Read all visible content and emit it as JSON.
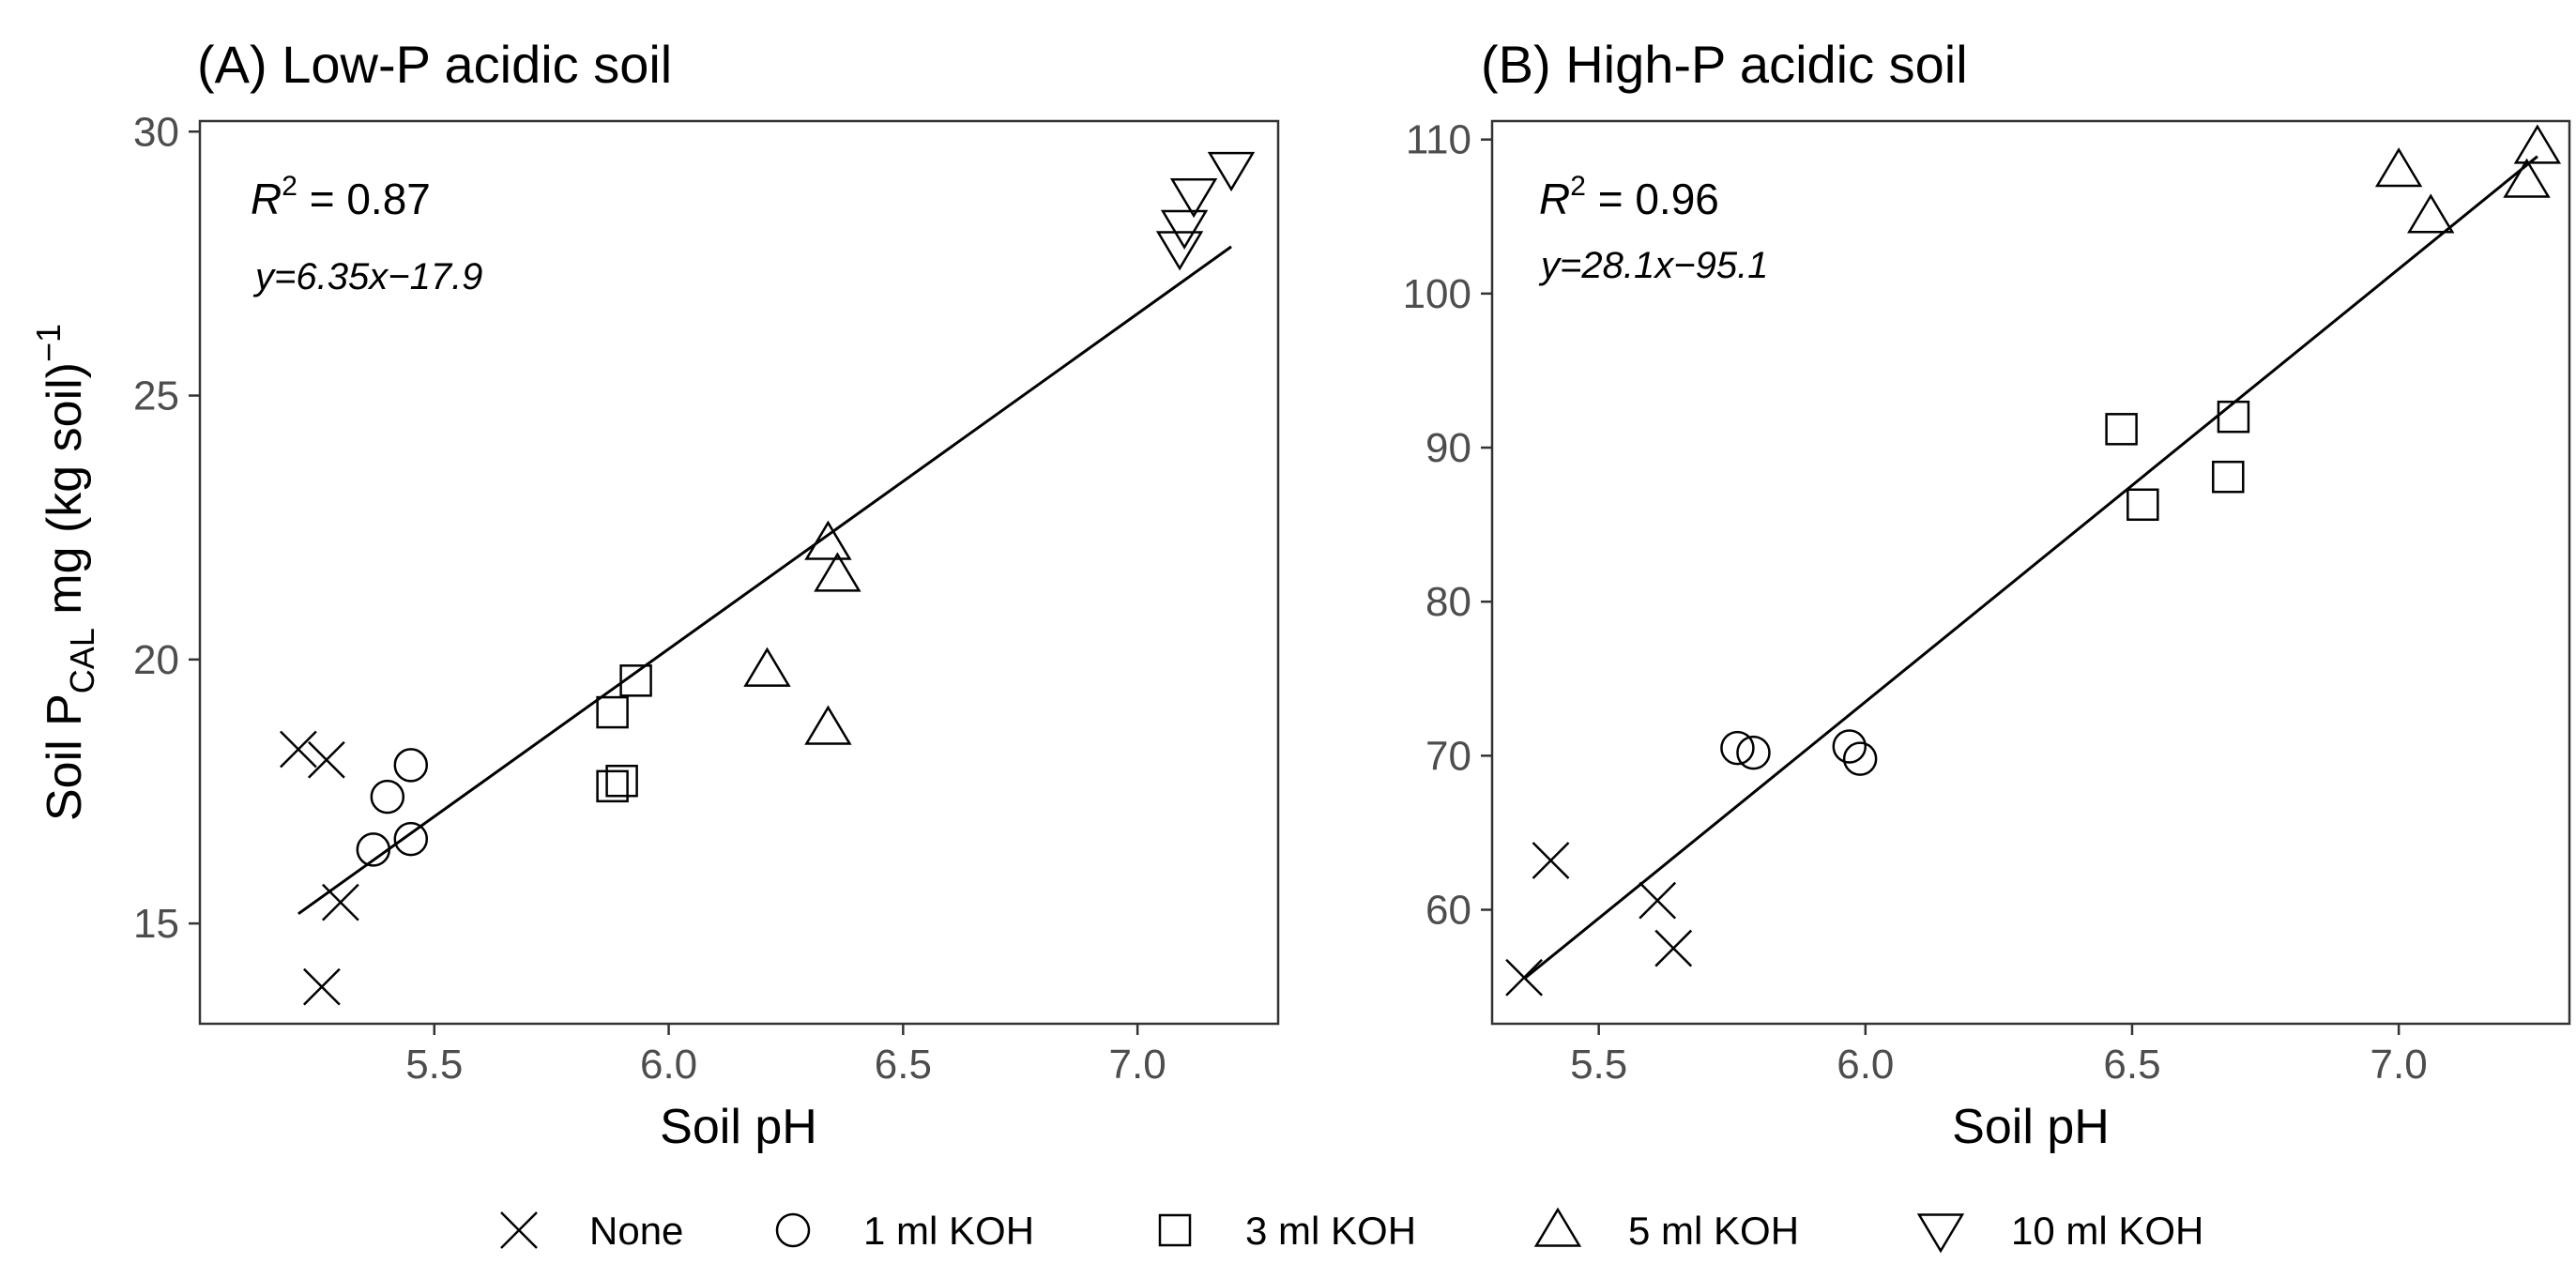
{
  "legend": [
    {
      "marker": "cross",
      "label": "None"
    },
    {
      "marker": "circle",
      "label": "1 ml KOH"
    },
    {
      "marker": "square",
      "label": "3 ml KOH"
    },
    {
      "marker": "triangle-up",
      "label": "5 ml KOH"
    },
    {
      "marker": "triangle-down",
      "label": "10 ml KOH"
    }
  ],
  "shared_y_label": {
    "main": "Soil P",
    "sub": "CAL",
    "rest": " mg (kg soil)",
    "sup": "−1"
  },
  "chart_data": [
    {
      "type": "scatter",
      "title": "(A) Low-P acidic soil",
      "xlabel": "Soil pH",
      "ylabel": "Soil PCAL mg (kg soil)−1",
      "xlim": [
        5.0,
        7.3
      ],
      "ylim": [
        13.1,
        30.2
      ],
      "xticks": [
        "5.5",
        "6.0",
        "6.5",
        "7.0"
      ],
      "yticks": [
        "15",
        "20",
        "25",
        "30"
      ],
      "r2": {
        "label": "R",
        "sup": "2",
        "value": " = 0.87"
      },
      "equation": "y=6.35x−17.9",
      "fit": {
        "slope": 6.35,
        "intercept": -17.9,
        "x_range": [
          5.21,
          7.2
        ]
      },
      "series": [
        {
          "name": "None",
          "marker": "cross",
          "points": [
            [
              5.21,
              18.3
            ],
            [
              5.27,
              18.1
            ],
            [
              5.3,
              15.4
            ],
            [
              5.26,
              13.8
            ]
          ]
        },
        {
          "name": "1 ml KOH",
          "marker": "circle",
          "points": [
            [
              5.4,
              17.4
            ],
            [
              5.45,
              18.0
            ],
            [
              5.37,
              16.4
            ],
            [
              5.45,
              16.6
            ]
          ]
        },
        {
          "name": "3 ml KOH",
          "marker": "square",
          "points": [
            [
              5.88,
              19.0
            ],
            [
              5.93,
              19.6
            ],
            [
              5.88,
              17.6
            ],
            [
              5.9,
              17.7
            ]
          ]
        },
        {
          "name": "5 ml KOH",
          "marker": "triangle-up",
          "points": [
            [
              6.34,
              22.2
            ],
            [
              6.36,
              21.6
            ],
            [
              6.21,
              19.8
            ],
            [
              6.34,
              18.7
            ]
          ]
        },
        {
          "name": "10 ml KOH",
          "marker": "triangle-down",
          "points": [
            [
              7.2,
              29.3
            ],
            [
              7.12,
              28.8
            ],
            [
              7.1,
              28.2
            ],
            [
              7.09,
              27.8
            ]
          ]
        }
      ]
    },
    {
      "type": "scatter",
      "title": "(B) High-P acidic soil",
      "xlabel": "Soil pH",
      "ylabel": "",
      "xlim": [
        5.3,
        7.32
      ],
      "ylim": [
        52.6,
        111.2
      ],
      "xticks": [
        "5.5",
        "6.0",
        "6.5",
        "7.0"
      ],
      "yticks": [
        "60",
        "70",
        "80",
        "90",
        "100",
        "110"
      ],
      "r2": {
        "label": "R",
        "sup": "2",
        "value": " = 0.96"
      },
      "equation": "y=28.1x−95.1",
      "fit": {
        "slope": 28.1,
        "intercept": -95.1,
        "x_range": [
          5.36,
          7.26
        ]
      },
      "series": [
        {
          "name": "None",
          "marker": "cross",
          "points": [
            [
              5.41,
              63.2
            ],
            [
              5.61,
              60.6
            ],
            [
              5.64,
              57.5
            ],
            [
              5.36,
              55.6
            ]
          ]
        },
        {
          "name": "1 ml KOH",
          "marker": "circle",
          "points": [
            [
              5.76,
              70.5
            ],
            [
              5.79,
              70.2
            ],
            [
              5.97,
              70.6
            ],
            [
              5.99,
              69.8
            ]
          ]
        },
        {
          "name": "3 ml KOH",
          "marker": "square",
          "points": [
            [
              6.48,
              91.2
            ],
            [
              6.69,
              92.0
            ],
            [
              6.52,
              86.3
            ],
            [
              6.68,
              88.1
            ]
          ]
        },
        {
          "name": "5 ml KOH",
          "marker": "triangle-up",
          "points": [
            [
              7.0,
              108.0
            ],
            [
              7.26,
              109.5
            ],
            [
              7.24,
              107.3
            ],
            [
              7.06,
              105.0
            ]
          ]
        }
      ]
    }
  ]
}
